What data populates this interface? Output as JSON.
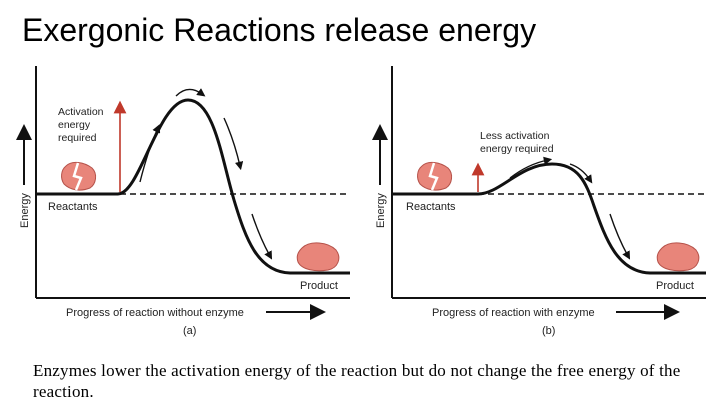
{
  "slide": {
    "title": "Exergonic Reactions release energy",
    "caption": "Enzymes lower the activation energy of the reaction but do not change the free energy of the reaction."
  },
  "panels": [
    {
      "energy_label": "Energy",
      "activation_lines": [
        "Activation",
        "energy",
        "required"
      ],
      "reactants_label": "Reactants",
      "product_label": "Product",
      "x_axis_label": "Progress of reaction without enzyme",
      "panel_letter": "(a)"
    },
    {
      "energy_label": "Energy",
      "activation_lines": [
        "Less activation",
        "energy required"
      ],
      "reactants_label": "Reactants",
      "product_label": "Product",
      "x_axis_label": "Progress of reaction with enzyme",
      "panel_letter": "(b)"
    }
  ],
  "colors": {
    "curve": "#111111",
    "activation_arrow": "#c0392b",
    "molecule": "#e8857a",
    "molecule_dark": "#b5524a"
  }
}
